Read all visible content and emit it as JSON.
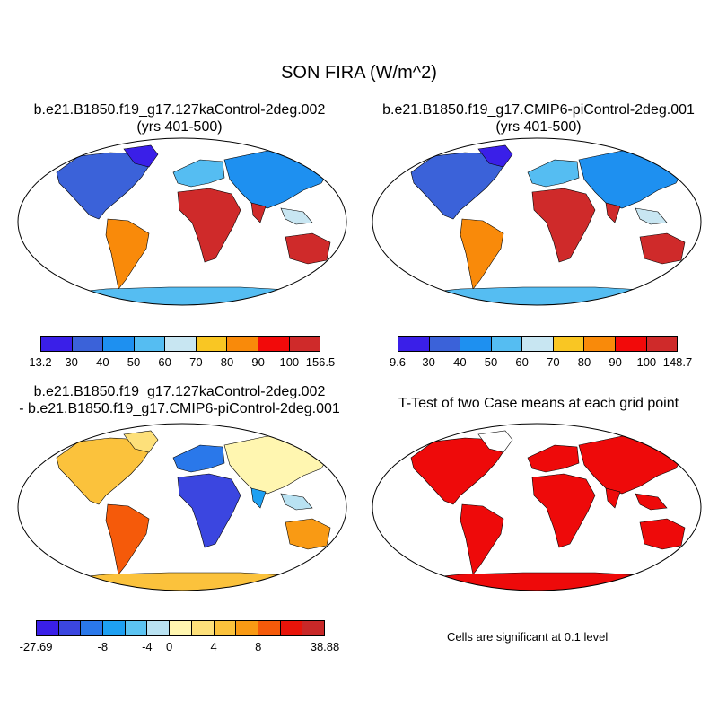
{
  "figure": {
    "title": "SON FIRA (W/m^2)"
  },
  "panels": [
    {
      "title_line1": "b.e21.B1850.f19_g17.127kaControl-2deg.002",
      "title_line2": "(yrs 401-500)",
      "colorbar_labels": [
        "13.2",
        "30",
        "40",
        "50",
        "60",
        "70",
        "80",
        "90",
        "100",
        "156.5"
      ],
      "colors": [
        "#3a1fe8",
        "#3b62d9",
        "#1e90f0",
        "#55bdf2",
        "#c8e6f2",
        "#f9c623",
        "#f98a0a",
        "#f20a0a",
        "#cf2a2a"
      ]
    },
    {
      "title_line1": "b.e21.B1850.f19_g17.CMIP6-piControl-2deg.001",
      "title_line2": "(yrs 401-500)",
      "colorbar_labels": [
        "9.6",
        "30",
        "40",
        "50",
        "60",
        "70",
        "80",
        "90",
        "100",
        "148.7"
      ],
      "colors": [
        "#3a1fe8",
        "#3b62d9",
        "#1e90f0",
        "#55bdf2",
        "#c8e6f2",
        "#f9c623",
        "#f98a0a",
        "#f20a0a",
        "#cf2a2a"
      ]
    },
    {
      "title_line1": "b.e21.B1850.f19_g17.127kaControl-2deg.002",
      "title_line2": "- b.e21.B1850.f19_g17.CMIP6-piControl-2deg.001",
      "colorbar_labels": [
        "-27.69",
        "-8",
        "-4",
        "0",
        "4",
        "8",
        "38.88"
      ],
      "colors": [
        "#3a1fe8",
        "#3b46e0",
        "#2a78ea",
        "#1ea0f2",
        "#5cc4f2",
        "#b9e2f2",
        "#fff6b0",
        "#fde07a",
        "#fbc23c",
        "#f99a14",
        "#f55a0a",
        "#e8140a",
        "#c82828"
      ]
    },
    {
      "title_line1": "T-Test of two Case means at each grid point",
      "note": "Cells are significant at 0.1 level",
      "colors": [
        "#ee0a0a"
      ]
    }
  ]
}
